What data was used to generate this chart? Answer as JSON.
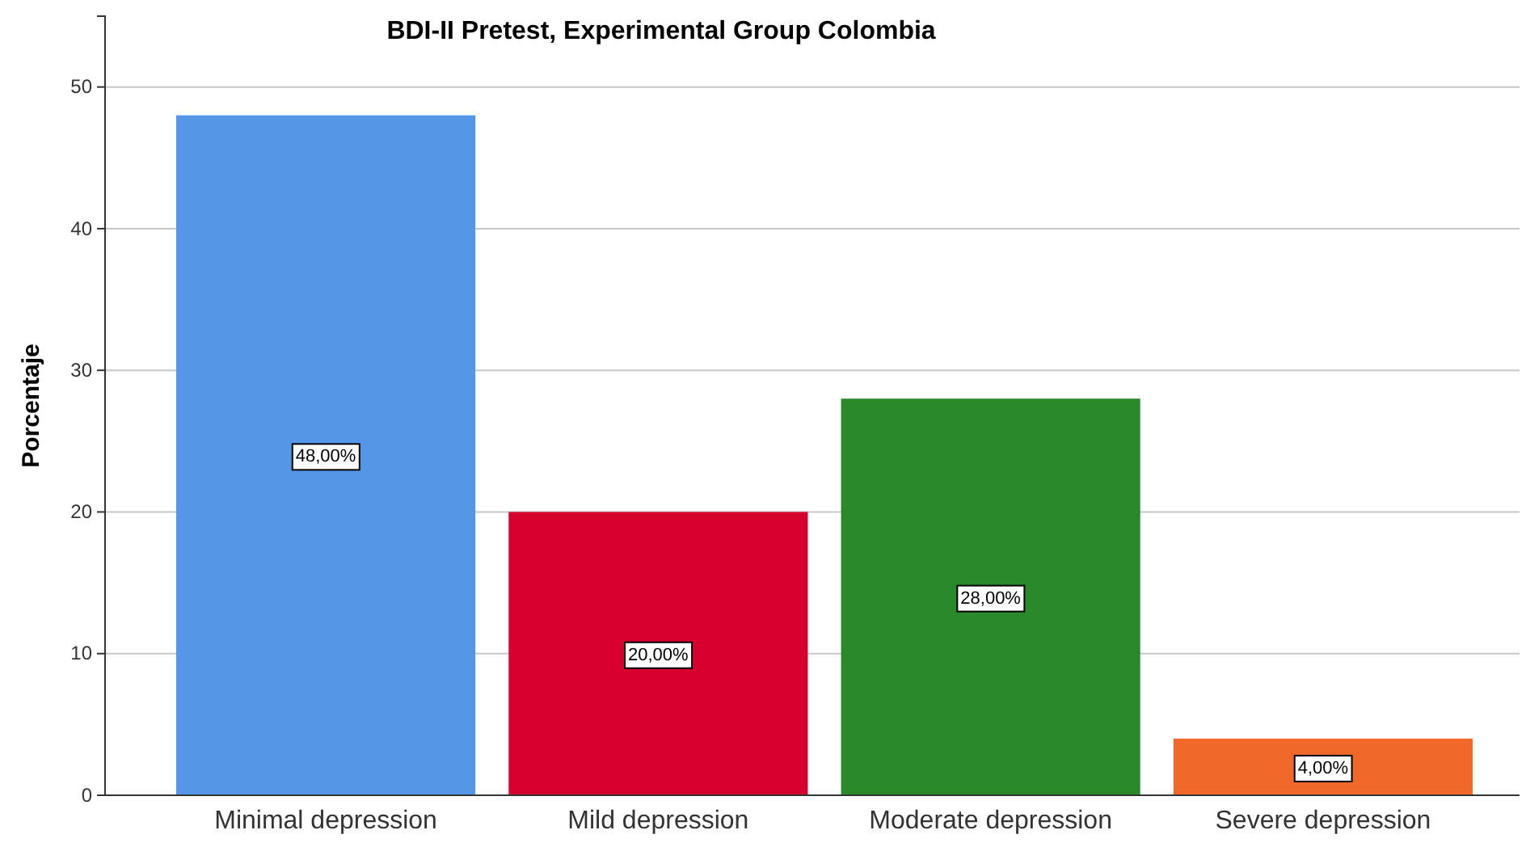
{
  "chart_data": {
    "type": "bar",
    "title": "BDI-II Pretest, Experimental Group Colombia",
    "ylabel": "Porcentaje",
    "categories": [
      "Minimal depression",
      "Mild depression",
      "Moderate depression",
      "Severe depression"
    ],
    "values": [
      48,
      20,
      28,
      4
    ],
    "colors": [
      "#5596e6",
      "#d6002f",
      "#2a8a2a",
      "#f0682a"
    ],
    "value_labels": [
      "48,00%",
      "20,00%",
      "28,00%",
      "4,00%"
    ],
    "ylim": [
      0,
      55
    ],
    "yticks": [
      0,
      10,
      20,
      30,
      40,
      50
    ],
    "grid": "y"
  }
}
